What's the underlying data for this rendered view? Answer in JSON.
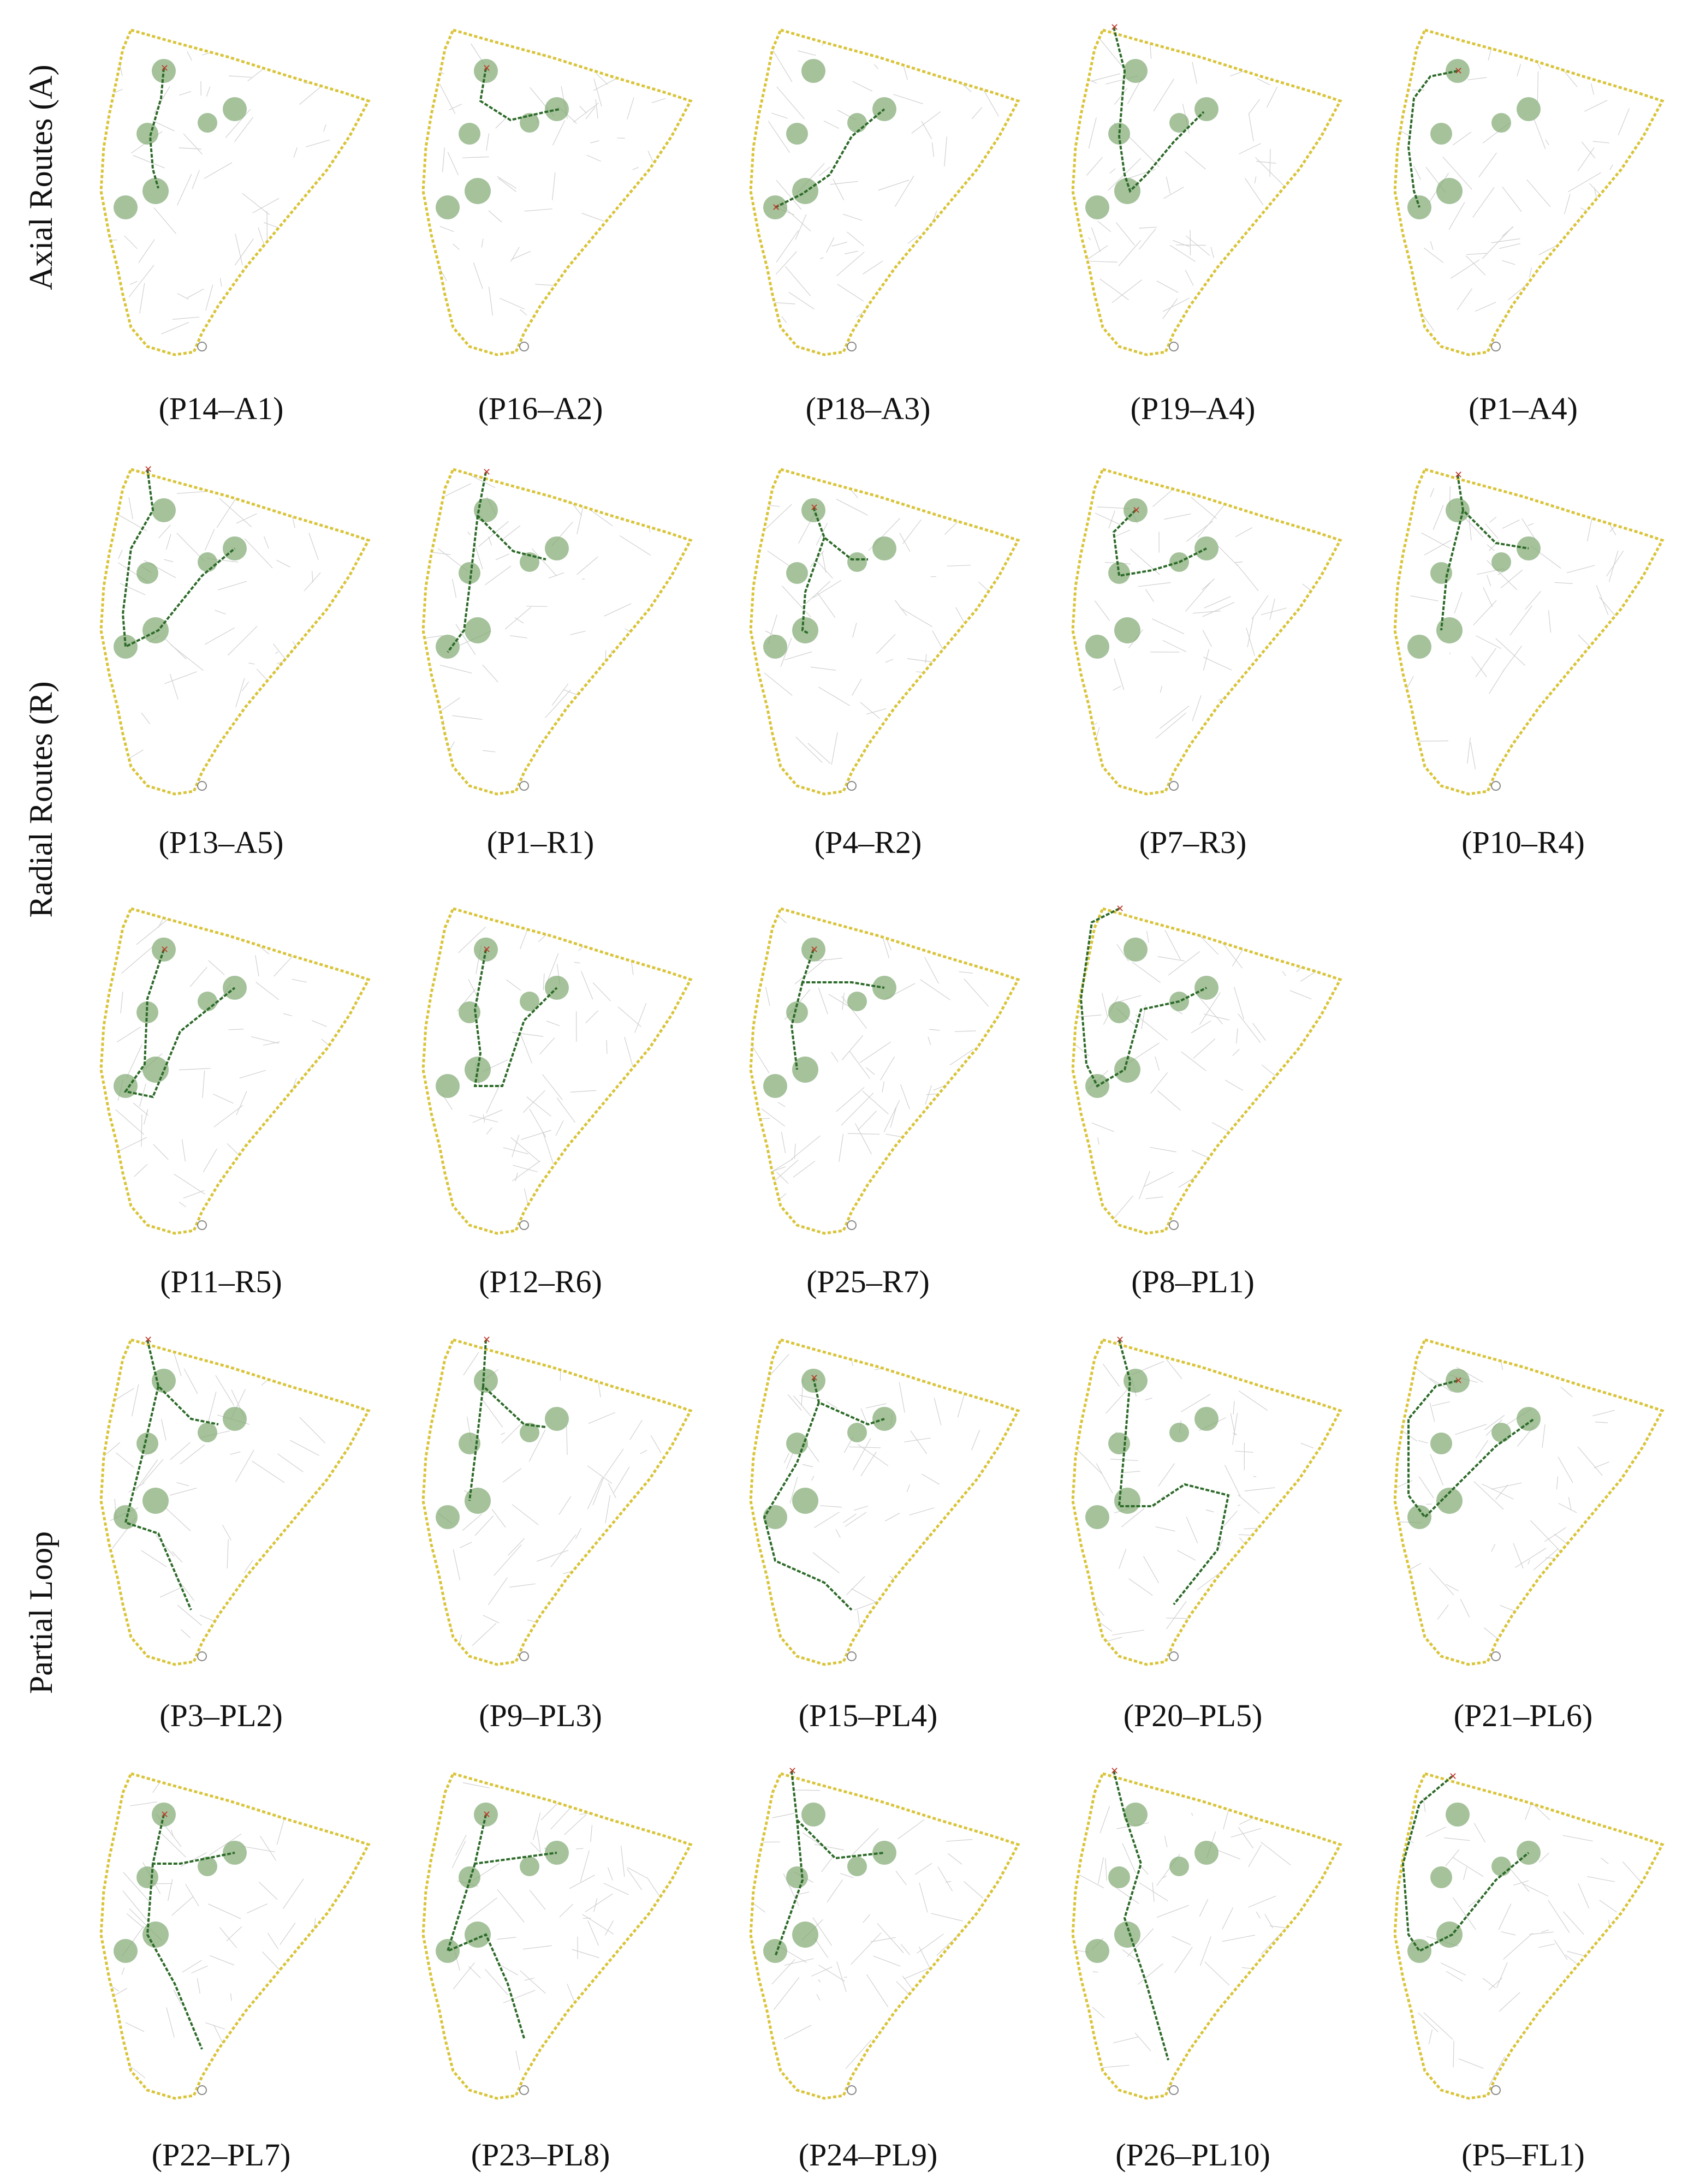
{
  "row_labels": {
    "axial": "Axial Routes (A)",
    "radial": "Radial Routes (R)",
    "partial": "Partial Loop"
  },
  "panels": [
    {
      "label": "(P14–A1)"
    },
    {
      "label": "(P16–A2)"
    },
    {
      "label": "(P18–A3)"
    },
    {
      "label": "(P19–A4)"
    },
    {
      "label": "(P1–A4)"
    },
    {
      "label": "(P13–A5)"
    },
    {
      "label": "(P1–R1)"
    },
    {
      "label": "(P4–R2)"
    },
    {
      "label": "(P7–R3)"
    },
    {
      "label": "(P10–R4)"
    },
    {
      "label": "(P11–R5)"
    },
    {
      "label": "(P12–R6)"
    },
    {
      "label": "(P25–R7)"
    },
    {
      "label": "(P8–PL1)"
    },
    {
      "label": "(P3–PL2)"
    },
    {
      "label": "(P9–PL3)"
    },
    {
      "label": "(P15–PL4)"
    },
    {
      "label": "(P20–PL5)"
    },
    {
      "label": "(P21–PL6)"
    },
    {
      "label": "(P22–PL7)"
    },
    {
      "label": "(P23–PL8)"
    },
    {
      "label": "(P24–PL9)"
    },
    {
      "label": "(P26–PL10)"
    },
    {
      "label": "(P5–FL1)"
    }
  ],
  "colors": {
    "boundary": "#d9c43a",
    "route": "#2e6b2a",
    "hotspot": "#7fa870",
    "streets": "#cfcfcf",
    "start_marker": "#c0392b"
  }
}
